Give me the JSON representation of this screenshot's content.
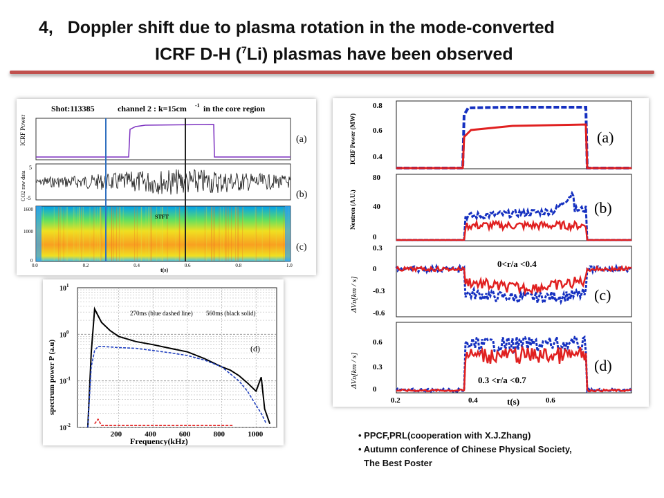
{
  "slide": {
    "title_number": "4,",
    "title_line1": "Doppler shift due to plasma rotation in the mode-converted",
    "title_line2_pre": "ICRF D-H (",
    "title_sup": "7",
    "title_line2_post": "Li) plasmas have been observed",
    "accent_color": "#c0504d"
  },
  "left_figure": {
    "header_shot": "Shot:113385",
    "header_channel": "channel 2 : k=15cm",
    "header_exp": "-1",
    "header_region": "in the core region",
    "ylabel_icrf": "ICRF Power",
    "ylabel_co2": "CO2 raw data",
    "tick_5": "5",
    "tick_m5": "-5",
    "tick_1600": "1600",
    "tick_1000": "1000",
    "tick_0": "0",
    "stft_label": "STFT",
    "xaxis_ticks": [
      "0.0",
      "0.2",
      "0.4",
      "0.6",
      "0.8",
      "1.0"
    ],
    "xlabel": "t(s)",
    "panel_a": "(a)",
    "panel_b": "(b)",
    "panel_c": "(c)"
  },
  "spectrum_figure": {
    "chart_data": {
      "type": "line",
      "legend_text_blue": "270ms (blue dashed line)",
      "legend_text_black": "560ms (black solid)",
      "panel": "(d)",
      "xlabel": "Frequency(kHz)",
      "ylabel": "spectrum power P (a.u)",
      "y_scale": "log",
      "ylim": [
        0.01,
        10
      ],
      "xlim": [
        -40,
        1120
      ],
      "x_ticks": [
        "200",
        "400",
        "600",
        "800",
        "1000"
      ],
      "y_ticks": [
        "10^-2",
        "10^-1",
        "10^0",
        "10^1"
      ],
      "y_tick_base": "10",
      "y_tick_exps": [
        "-2",
        "-1",
        "0",
        "1"
      ],
      "series": [
        {
          "color": "#000000",
          "style": "solid",
          "x": [
            20,
            40,
            60,
            80,
            100,
            150,
            200,
            300,
            400,
            500,
            600,
            700,
            800,
            850,
            900,
            950,
            1000,
            1030,
            1050,
            1080
          ],
          "y": [
            0.01,
            0.4,
            3.5,
            2.5,
            1.8,
            1.2,
            0.9,
            0.7,
            0.6,
            0.5,
            0.42,
            0.3,
            0.2,
            0.17,
            0.13,
            0.09,
            0.06,
            0.12,
            0.025,
            0.012
          ]
        },
        {
          "color": "#1f3fbf",
          "style": "dashed",
          "x": [
            20,
            40,
            60,
            80,
            100,
            200,
            300,
            400,
            500,
            600,
            700,
            800,
            900,
            950,
            1000,
            1030,
            1060
          ],
          "y": [
            0.01,
            0.2,
            0.45,
            0.55,
            0.55,
            0.52,
            0.5,
            0.45,
            0.4,
            0.35,
            0.28,
            0.2,
            0.1,
            0.06,
            0.03,
            0.02,
            0.012
          ]
        },
        {
          "color": "#e02020",
          "style": "dashed",
          "x": [
            60,
            80,
            100,
            200,
            400,
            600,
            800,
            870
          ],
          "y": [
            0.012,
            0.015,
            0.011,
            0.011,
            0.011,
            0.011,
            0.011,
            0.011
          ]
        }
      ]
    }
  },
  "right_figure": {
    "label_neutron": "Neutron (A.U.)",
    "label_icrf": "ICRF Power (MW)",
    "label_dv": "ΔV",
    "label_dv_sub": "D",
    "label_dv_unit": "[km / s]",
    "a_ticks": [
      "0.8",
      "0.6",
      "0.4"
    ],
    "b_ticks": [
      "80",
      "40",
      "0"
    ],
    "c_ticks": [
      "0.3",
      "0",
      "-0.3",
      "-0.6"
    ],
    "d_ticks": [
      "0.6",
      "0.3",
      "0"
    ],
    "x_ticks": [
      "0.2",
      "0.4",
      "0.6"
    ],
    "xlabel": "t(s)",
    "panel_a": "(a)",
    "panel_b": "(b)",
    "panel_c": "(c)",
    "panel_d": "(d)",
    "annot_c": "0<r/a <0.4",
    "annot_d": "0.3 <r/a <0.7"
  },
  "notes": {
    "item1": "PPCF,PRL(cooperation with X.J.Zhang)",
    "item2": "Autumn conference of Chinese Physical Society,",
    "item2_cont": "The Best Poster"
  }
}
